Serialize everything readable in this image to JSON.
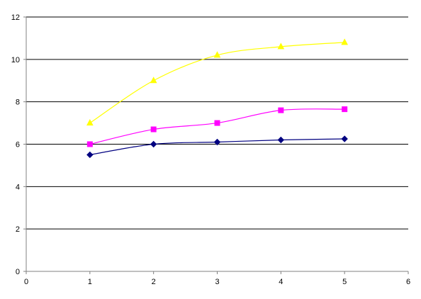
{
  "chart_data": {
    "type": "scatter",
    "title": "",
    "xlabel": "",
    "ylabel": "",
    "xlim": [
      0,
      6
    ],
    "ylim": [
      0,
      12
    ],
    "x_ticks": [
      0,
      1,
      2,
      3,
      4,
      5,
      6
    ],
    "y_ticks": [
      0,
      2,
      4,
      6,
      8,
      10,
      12
    ],
    "grid": "horizontal major",
    "line_style": "smoothed",
    "legend": "none",
    "series": [
      {
        "marker": "diamond",
        "color": "#000080",
        "points": [
          [
            1,
            5.5
          ],
          [
            2,
            6.0
          ],
          [
            3,
            6.1
          ],
          [
            4,
            6.2
          ],
          [
            5,
            6.25
          ]
        ]
      },
      {
        "marker": "square",
        "color": "#ff00ff",
        "points": [
          [
            1,
            6.0
          ],
          [
            2,
            6.7
          ],
          [
            3,
            7.0
          ],
          [
            4,
            7.6
          ],
          [
            5,
            7.65
          ]
        ]
      },
      {
        "marker": "triangle",
        "color": "#ffff00",
        "points": [
          [
            1,
            7.0
          ],
          [
            2,
            9.0
          ],
          [
            3,
            10.2
          ],
          [
            4,
            10.6
          ],
          [
            5,
            10.8
          ]
        ]
      }
    ]
  }
}
